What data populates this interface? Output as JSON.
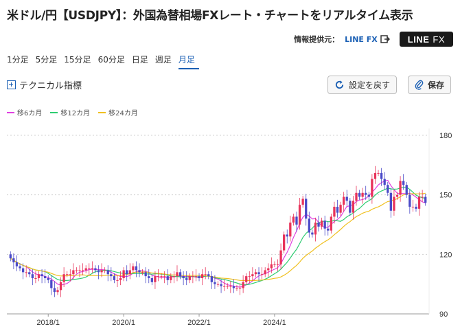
{
  "title": "米ドル/円【USDJPY】：外国為替相場FXレート・チャートをリアルタイム表示",
  "provider": {
    "label": "情報提供元：",
    "link_text": "LINE FX",
    "logo_line": "LINE",
    "logo_fx": "FX"
  },
  "tabs": [
    {
      "label": "1分足",
      "active": false
    },
    {
      "label": "5分足",
      "active": false
    },
    {
      "label": "15分足",
      "active": false
    },
    {
      "label": "60分足",
      "active": false
    },
    {
      "label": "日足",
      "active": false
    },
    {
      "label": "週足",
      "active": false
    },
    {
      "label": "月足",
      "active": true
    }
  ],
  "toolbar": {
    "technical_label": "テクニカル指標",
    "reset_label": "設定を戻す",
    "save_label": "保存"
  },
  "legend": [
    {
      "label": "移6カ月",
      "color": "#e040e0"
    },
    {
      "label": "移12カ月",
      "color": "#2ecc71"
    },
    {
      "label": "移24カ月",
      "color": "#f0c020"
    }
  ],
  "colors": {
    "up": "#e8335a",
    "down": "#4a4ac8",
    "accent": "#1a5fb4"
  },
  "chart_data": {
    "type": "candlestick",
    "interval": "monthly",
    "ylim": [
      90,
      180
    ],
    "yticks": [
      90,
      120,
      150,
      180
    ],
    "xticks": [
      "2018/1",
      "2020/1",
      "2022/1",
      "2024/1"
    ],
    "closes": [
      118,
      116,
      114,
      113,
      111,
      111,
      110,
      108,
      108,
      110,
      109,
      108,
      107,
      103,
      101,
      102,
      106,
      110,
      110,
      110,
      112,
      112,
      112,
      112,
      113,
      113,
      113,
      112,
      111,
      112,
      112,
      110,
      109,
      107,
      107,
      108,
      112,
      110,
      112,
      114,
      112,
      111,
      111,
      109,
      108,
      106,
      109,
      109,
      109,
      109,
      107,
      109,
      109,
      111,
      109,
      108,
      107,
      109,
      109,
      109,
      108,
      110,
      110,
      109,
      106,
      105,
      105,
      104,
      104,
      104,
      104,
      103,
      103,
      103,
      106,
      109,
      109,
      110,
      111,
      110,
      110,
      112,
      113,
      115,
      115,
      115,
      122,
      130,
      129,
      136,
      139,
      135,
      145,
      148,
      138,
      131,
      130,
      136,
      134,
      137,
      133,
      132,
      139,
      144,
      141,
      145,
      149,
      147,
      141,
      147,
      151,
      149,
      151,
      150,
      149,
      158,
      161,
      161,
      158,
      155,
      151,
      142,
      149,
      150,
      157,
      155,
      150,
      144,
      144,
      143,
      149,
      149,
      146
    ]
  }
}
